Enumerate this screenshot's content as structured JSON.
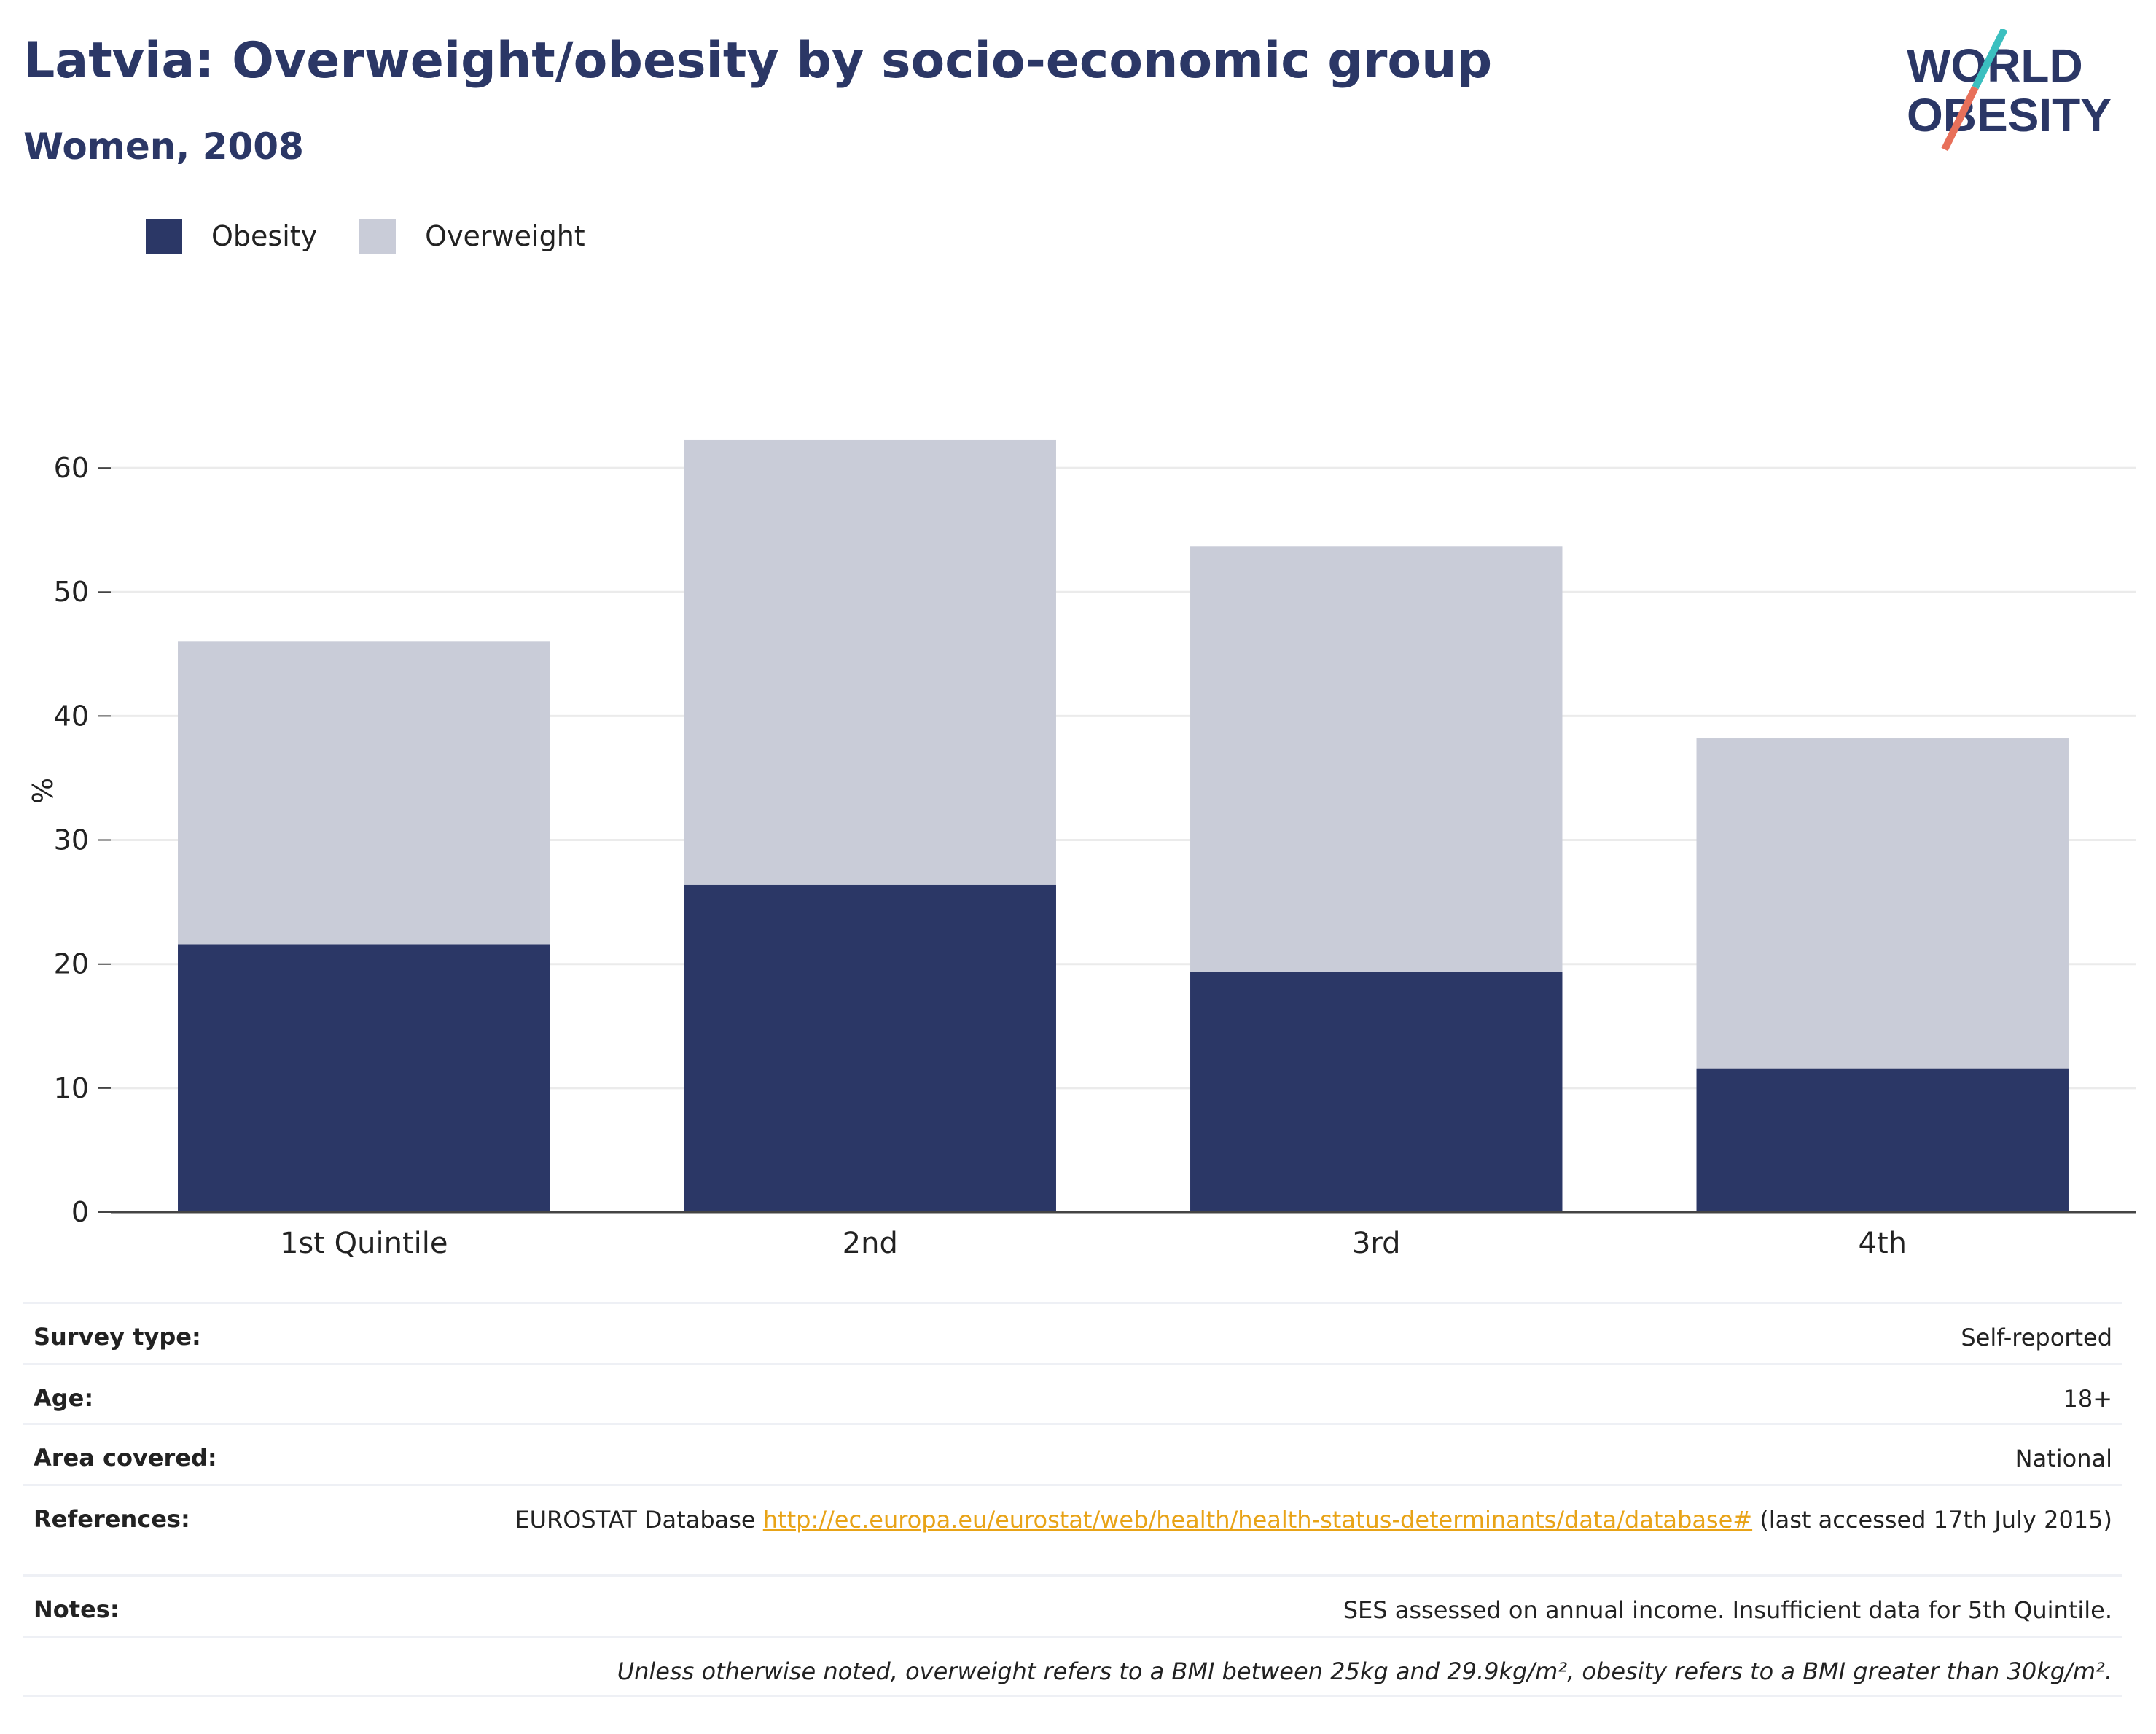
{
  "header": {
    "title": "Latvia: Overweight/obesity by socio-economic group",
    "subtitle": "Women, 2008"
  },
  "logo": {
    "line1": "WORLD",
    "line2": "OBESITY",
    "colors": {
      "text": "#2b3766",
      "slash_teal": "#3bbfbf",
      "slash_coral": "#e8705a"
    }
  },
  "legend": {
    "items": [
      {
        "label": "Obesity",
        "color": "#2b3766"
      },
      {
        "label": "Overweight",
        "color": "#c9ccd8"
      }
    ]
  },
  "chart_data": {
    "type": "bar",
    "stacked": true,
    "categories": [
      "1st Quintile",
      "2nd",
      "3rd",
      "4th"
    ],
    "series": [
      {
        "name": "Obesity",
        "values": [
          21.6,
          26.4,
          19.4,
          11.6
        ],
        "color": "#2b3766"
      },
      {
        "name": "Overweight",
        "values": [
          24.4,
          35.9,
          34.3,
          26.6
        ],
        "color": "#c9ccd8"
      }
    ],
    "totals": [
      46.0,
      62.3,
      53.7,
      38.2
    ],
    "ylabel": "%",
    "xlabel": "",
    "ylim": [
      0,
      66
    ],
    "yticks": [
      0,
      10,
      20,
      30,
      40,
      50,
      60
    ],
    "grid": true,
    "legend_position": "top-left"
  },
  "info": {
    "rows": [
      {
        "label": "Survey type:",
        "value": "Self-reported"
      },
      {
        "label": "Age:",
        "value": "18+"
      },
      {
        "label": "Area covered:",
        "value": "National"
      },
      {
        "label": "References:",
        "value_prefix": "EUROSTAT Database ",
        "link": "http://ec.europa.eu/eurostat/web/health/health-status-determinants/data/database#",
        "value_suffix": " (last accessed 17th July 2015)"
      },
      {
        "label": "Notes:",
        "value": "SES assessed on annual income. Insufficient data for 5th Quintile."
      }
    ],
    "footnote": "Unless otherwise noted, overweight refers to a BMI between 25kg and 29.9kg/m², obesity refers to a BMI greater than 30kg/m²."
  }
}
